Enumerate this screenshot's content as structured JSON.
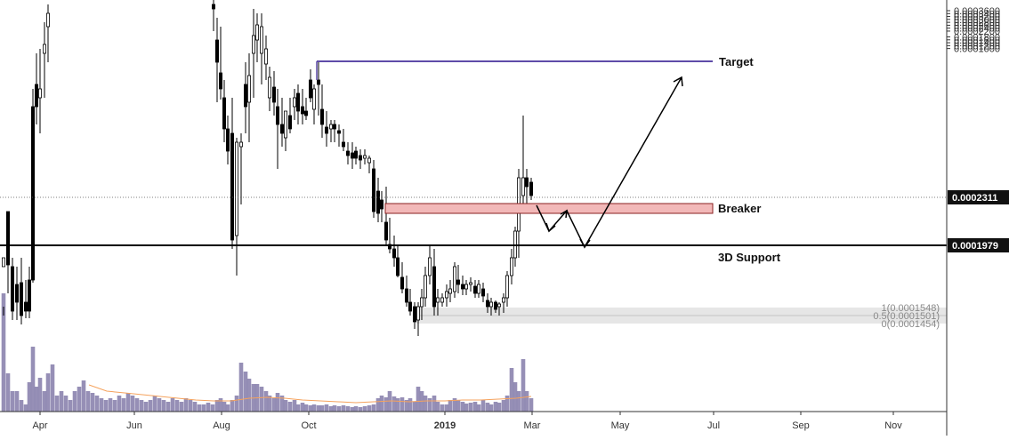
{
  "chart_data": {
    "type": "candlestick",
    "x_axis": {
      "tick_labels": [
        "Apr",
        "Jun",
        "Aug",
        "Oct",
        "2019",
        "Mar",
        "May",
        "Jul",
        "Sep",
        "Nov"
      ],
      "bold_labels": [
        "2019"
      ]
    },
    "y_axis": {
      "range": [
        8.5e-05,
        0.00038
      ],
      "tick_labels": [
        "0.0003600",
        "0.0003400",
        "0.0003200",
        "0.0003000",
        "0.0002800",
        "0.0002600",
        "0.0002400",
        "0.0002200",
        "0.0001800",
        "0.0001600",
        "0.0001400",
        "0.0001200",
        "0.0001000"
      ],
      "tick_values": [
        0.00036,
        0.00034,
        0.00032,
        0.0003,
        0.00028,
        0.00026,
        0.00024,
        0.00022,
        0.00018,
        0.00016,
        0.00014,
        0.00012,
        0.0001
      ]
    },
    "price_labels": {
      "last_price": "0.0002311",
      "support_level": "0.0001979"
    },
    "annotations": {
      "target": "Target",
      "breaker": "Breaker",
      "support": "3D Support"
    },
    "fib_labels": [
      "1(0.0001548)",
      "0.5(0.0001501)",
      "0(0.0001454)"
    ],
    "levels": {
      "target": 0.000325,
      "support": 0.0001979,
      "last_price": 0.0002311,
      "breaker_top": 0.000228,
      "breaker_bottom": 0.000221,
      "fib_top": 0.0001548,
      "fib_mid": 0.0001501,
      "fib_bottom": 0.0001454
    },
    "colors": {
      "target_line": "#5e4ba8",
      "breaker_fill": "#f2b8b8",
      "breaker_stroke": "#8a2020",
      "volume": "#8b83ae",
      "volume_ma": "#f5a25d",
      "fib_band": "#dcdcdc",
      "candles": "#000000"
    }
  }
}
